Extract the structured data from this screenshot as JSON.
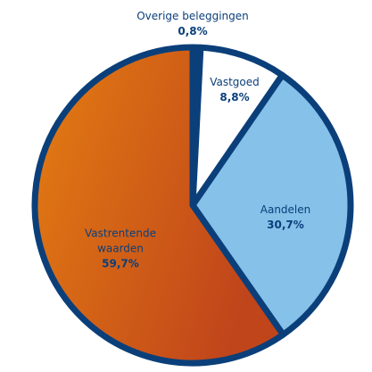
{
  "chart_data": {
    "type": "pie",
    "categories": [
      "Overige beleggingen",
      "Vastgoed",
      "Aandelen",
      "Vastrentende waarden"
    ],
    "values": [
      0.8,
      8.8,
      30.7,
      59.7
    ],
    "value_labels": [
      "0,8%",
      "8,8%",
      "30,7%",
      "59,7%"
    ],
    "colors": [
      "#0b3f7a",
      "#ffffff",
      "#85c1e9",
      "#d4621a"
    ]
  }
}
